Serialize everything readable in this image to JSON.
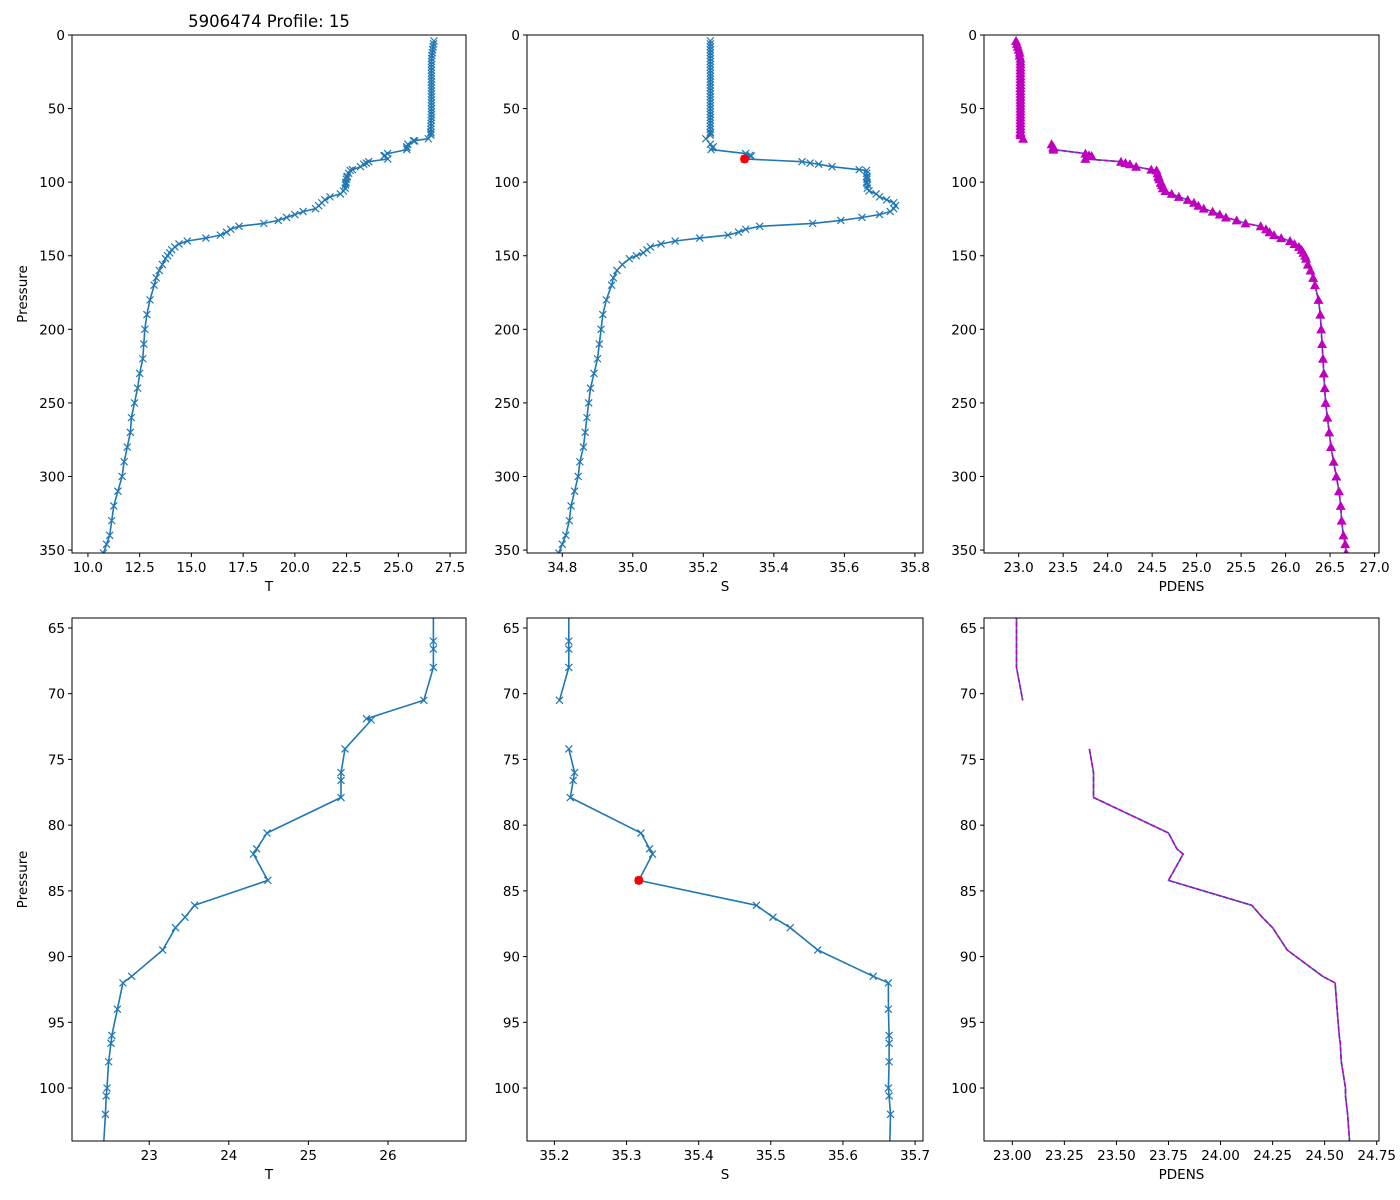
{
  "figure_title": "5906474 Profile: 15",
  "colors": {
    "line": "#1f77b4",
    "density": "#bf00bf",
    "flag": "#ff0000"
  },
  "chart_data": {
    "type": "line",
    "title": "5906474 Profile: 15",
    "ylabel": "Pressure",
    "flagged_point": {
      "pressure": 84.2,
      "S": 35.317
    },
    "profile": {
      "pressure": [
        4,
        6,
        8,
        10,
        12,
        14,
        16,
        18,
        20,
        22,
        24,
        26,
        28,
        30,
        32,
        34,
        36,
        38,
        40,
        42,
        44,
        46,
        48,
        50,
        52,
        54,
        56,
        58,
        60,
        62,
        64,
        66,
        66.6,
        68,
        70.5,
        71.9,
        72,
        74.2,
        76,
        76.6,
        77.9,
        80.6,
        81.8,
        82.2,
        84.2,
        86.1,
        87,
        87.8,
        89.5,
        91.5,
        92,
        94,
        96,
        96.6,
        98,
        100,
        100.6,
        102,
        104.1,
        106,
        108,
        110,
        112,
        114,
        116,
        118,
        120,
        122,
        124,
        126,
        128,
        130,
        132,
        134,
        136,
        138,
        140,
        142,
        144,
        146,
        148,
        150,
        152,
        156,
        160,
        165,
        170,
        180,
        190,
        200,
        210,
        220,
        230,
        240,
        250,
        260,
        270,
        280,
        290,
        300,
        310,
        320,
        330,
        340,
        346,
        352
      ],
      "T": [
        26.72,
        26.7,
        26.68,
        26.66,
        26.64,
        26.62,
        26.61,
        26.6,
        26.6,
        26.6,
        26.6,
        26.6,
        26.6,
        26.6,
        26.6,
        26.6,
        26.6,
        26.6,
        26.6,
        26.6,
        26.6,
        26.6,
        26.6,
        26.6,
        26.6,
        26.6,
        26.6,
        26.59,
        26.58,
        26.58,
        26.57,
        26.57,
        26.57,
        26.57,
        26.45,
        25.73,
        25.79,
        25.46,
        25.41,
        25.41,
        25.41,
        24.48,
        24.35,
        24.31,
        24.49,
        23.57,
        23.45,
        23.33,
        23.17,
        22.78,
        22.67,
        22.6,
        22.53,
        22.52,
        22.49,
        22.47,
        22.46,
        22.45,
        22.43,
        22.35,
        22.2,
        21.7,
        21.45,
        21.3,
        21.15,
        21.0,
        20.4,
        20.0,
        19.6,
        19.2,
        18.5,
        17.3,
        16.9,
        16.7,
        16.4,
        15.7,
        14.8,
        14.4,
        14.2,
        14.05,
        13.95,
        13.85,
        13.75,
        13.6,
        13.45,
        13.3,
        13.2,
        13.0,
        12.85,
        12.75,
        12.7,
        12.65,
        12.5,
        12.4,
        12.25,
        12.1,
        12.05,
        11.9,
        11.75,
        11.65,
        11.45,
        11.25,
        11.15,
        11.05,
        10.9,
        10.75
      ],
      "S": [
        35.22,
        35.22,
        35.22,
        35.22,
        35.22,
        35.22,
        35.22,
        35.22,
        35.22,
        35.22,
        35.22,
        35.22,
        35.22,
        35.22,
        35.22,
        35.22,
        35.22,
        35.22,
        35.22,
        35.22,
        35.22,
        35.22,
        35.22,
        35.22,
        35.22,
        35.22,
        35.22,
        35.22,
        35.22,
        35.22,
        35.22,
        35.22,
        35.22,
        35.22,
        35.207,
        null,
        null,
        35.22,
        35.228,
        35.226,
        35.222,
        35.32,
        35.332,
        35.336,
        35.317,
        35.48,
        35.503,
        35.527,
        35.565,
        35.642,
        35.663,
        35.663,
        35.664,
        35.664,
        35.664,
        35.663,
        35.664,
        35.666,
        35.665,
        35.67,
        35.69,
        35.7,
        35.72,
        35.74,
        35.745,
        35.74,
        35.73,
        35.7,
        35.65,
        35.59,
        35.51,
        35.36,
        35.32,
        35.3,
        35.27,
        35.19,
        35.12,
        35.08,
        35.05,
        35.04,
        35.03,
        35.01,
        34.99,
        34.97,
        34.955,
        34.945,
        34.94,
        34.925,
        34.915,
        34.91,
        34.905,
        34.9,
        34.89,
        34.88,
        34.875,
        34.87,
        34.865,
        34.86,
        34.85,
        34.845,
        34.835,
        34.825,
        34.82,
        34.81,
        34.8,
        34.79
      ],
      "PDENS": [
        22.97,
        22.98,
        22.99,
        23.0,
        23.01,
        23.01,
        23.02,
        23.02,
        23.02,
        23.02,
        23.02,
        23.02,
        23.02,
        23.02,
        23.02,
        23.02,
        23.02,
        23.02,
        23.02,
        23.02,
        23.02,
        23.02,
        23.02,
        23.02,
        23.02,
        23.02,
        23.02,
        23.02,
        23.02,
        23.02,
        23.02,
        23.02,
        23.02,
        23.02,
        23.05,
        null,
        null,
        23.37,
        23.39,
        23.39,
        23.39,
        23.75,
        23.79,
        23.82,
        23.75,
        24.15,
        24.2,
        24.25,
        24.32,
        24.49,
        24.55,
        24.56,
        24.57,
        24.575,
        24.58,
        24.6,
        24.6,
        24.61,
        24.62,
        24.65,
        24.72,
        24.8,
        24.9,
        24.97,
        25.02,
        25.08,
        25.18,
        25.26,
        25.33,
        25.45,
        25.55,
        25.72,
        25.78,
        25.82,
        25.87,
        25.95,
        26.05,
        26.1,
        26.15,
        26.18,
        26.2,
        26.22,
        26.23,
        26.25,
        26.28,
        26.31,
        26.33,
        26.37,
        26.39,
        26.4,
        26.41,
        26.42,
        26.43,
        26.44,
        26.45,
        26.47,
        26.49,
        26.51,
        26.54,
        26.57,
        26.6,
        26.62,
        26.63,
        26.65,
        26.67,
        26.68
      ]
    },
    "axes": [
      {
        "var": "T",
        "xlabel": "T",
        "ylabel": "Pressure",
        "title": "5906474 Profile: 15",
        "xlim": [
          9.23,
          28.27
        ],
        "ylim": [
          352,
          0
        ],
        "markers": "x",
        "xticks": [
          "10.0",
          "12.5",
          "15.0",
          "17.5",
          "20.0",
          "22.5",
          "25.0",
          "27.5"
        ],
        "yticks": [
          "0",
          "50",
          "100",
          "150",
          "200",
          "250",
          "300",
          "350"
        ]
      },
      {
        "var": "S",
        "xlabel": "S",
        "ylabel": "",
        "title": "",
        "xlim": [
          34.7,
          35.823
        ],
        "ylim": [
          352,
          0
        ],
        "markers": "x",
        "flag": true,
        "xticks": [
          "34.8",
          "35.0",
          "35.2",
          "35.4",
          "35.6",
          "35.8"
        ],
        "yticks": [
          "0",
          "50",
          "100",
          "150",
          "200",
          "250",
          "300",
          "350"
        ]
      },
      {
        "var": "PDENS",
        "xlabel": "PDENS",
        "ylabel": "",
        "title": "",
        "xlim": [
          22.61,
          27.05
        ],
        "ylim": [
          352,
          0
        ],
        "markers": "triangle",
        "xticks": [
          "23.0",
          "23.5",
          "24.0",
          "24.5",
          "25.0",
          "25.5",
          "26.0",
          "26.5",
          "27.0"
        ],
        "yticks": [
          "0",
          "50",
          "100",
          "150",
          "200",
          "250",
          "300",
          "350"
        ]
      },
      {
        "var": "T",
        "xlabel": "T",
        "ylabel": "Pressure",
        "title": "",
        "xlim": [
          22.03,
          26.98
        ],
        "ylim": [
          104.03,
          64.24
        ],
        "markers": "x",
        "xticks": [
          "23",
          "24",
          "25",
          "26"
        ],
        "yticks": [
          "65",
          "70",
          "75",
          "80",
          "85",
          "90",
          "95",
          "100"
        ]
      },
      {
        "var": "S",
        "xlabel": "S",
        "ylabel": "",
        "title": "",
        "xlim": [
          35.162,
          35.711
        ],
        "ylim": [
          104.03,
          64.24
        ],
        "markers": "x",
        "flag": true,
        "xticks": [
          "35.2",
          "35.3",
          "35.4",
          "35.5",
          "35.6",
          "35.7"
        ],
        "yticks": [
          "65",
          "70",
          "75",
          "80",
          "85",
          "90",
          "95",
          "100"
        ]
      },
      {
        "var": "PDENS",
        "xlabel": "PDENS",
        "ylabel": "",
        "title": "",
        "xlim": [
          22.864,
          24.761
        ],
        "ylim": [
          104.03,
          64.24
        ],
        "markers": "none",
        "xticks": [
          "23.00",
          "23.25",
          "23.50",
          "23.75",
          "24.00",
          "24.25",
          "24.50",
          "24.75"
        ],
        "yticks": [
          "65",
          "70",
          "75",
          "80",
          "85",
          "90",
          "95",
          "100"
        ]
      }
    ]
  }
}
